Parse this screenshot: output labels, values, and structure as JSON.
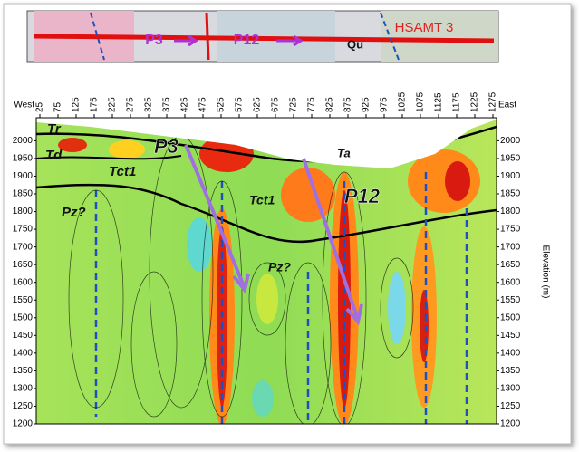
{
  "chart_data": {
    "type": "section",
    "x_label_left": "West",
    "x_label_right": "East",
    "y_label": "Elevation (m)",
    "xlim": [
      15,
      1285
    ],
    "ylim": [
      1200,
      2065
    ],
    "xticks": [
      25,
      75,
      125,
      175,
      225,
      275,
      325,
      375,
      425,
      475,
      525,
      575,
      625,
      675,
      725,
      775,
      825,
      875,
      925,
      975,
      1025,
      1075,
      1125,
      1175,
      1225,
      1275
    ],
    "yticks": [
      1200,
      1250,
      1300,
      1350,
      1400,
      1450,
      1500,
      1550,
      1600,
      1650,
      1700,
      1750,
      1800,
      1850,
      1900,
      1950,
      2000
    ],
    "annotations": [
      "Tr",
      "Td",
      "Tct1",
      "Pz?",
      "P3",
      "Ta",
      "Tct1",
      "P12",
      "Pz?"
    ],
    "map_labels": [
      "P3",
      "P12",
      "Qu",
      "HSAMT 3"
    ]
  }
}
